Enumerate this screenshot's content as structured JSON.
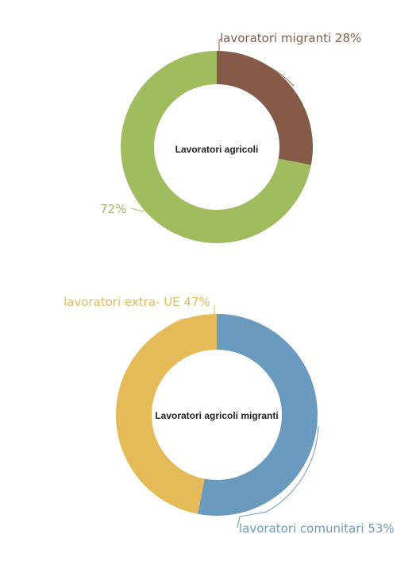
{
  "chart_data": [
    {
      "type": "pie",
      "center_label": "Lavoratori agricoli",
      "slices": [
        {
          "label": "lavoratori migranti 28%",
          "value": 28,
          "color": "#855A48"
        },
        {
          "label": "72%",
          "value": 72,
          "color": "#A1BC5E"
        }
      ]
    },
    {
      "type": "pie",
      "center_label": "Lavoratori agricoli migranti",
      "slices": [
        {
          "label": "lavoratori comunitari 53%",
          "value": 53,
          "color": "#6A9ABD"
        },
        {
          "label": "lavoratori extra- UE 47%",
          "value": 47,
          "color": "#E5BA58"
        }
      ]
    }
  ]
}
